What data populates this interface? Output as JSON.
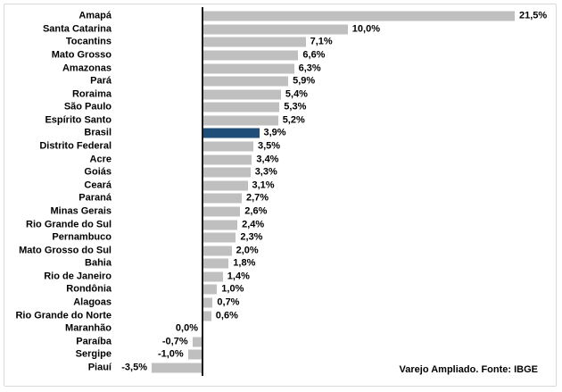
{
  "chart_data": {
    "type": "bar",
    "orientation": "horizontal",
    "title": "",
    "xlabel": "",
    "ylabel": "",
    "grid": false,
    "legend": false,
    "xlim": [
      -3.5,
      24
    ],
    "categories": [
      "Amapá",
      "Santa Catarina",
      "Tocantins",
      "Mato Grosso",
      "Amazonas",
      "Pará",
      "Roraima",
      "São Paulo",
      "Espírito Santo",
      "Brasil",
      "Distrito Federal",
      "Acre",
      "Goiás",
      "Ceará",
      "Paraná",
      "Minas Gerais",
      "Rio Grande do Sul",
      "Pernambuco",
      "Mato Grosso do Sul",
      "Bahia",
      "Rio de Janeiro",
      "Rondônia",
      "Alagoas",
      "Rio Grande do Norte",
      "Maranhão",
      "Paraíba",
      "Sergipe",
      "Piauí"
    ],
    "values": [
      21.5,
      10.0,
      7.1,
      6.6,
      6.3,
      5.9,
      5.4,
      5.3,
      5.2,
      3.9,
      3.5,
      3.4,
      3.3,
      3.1,
      2.7,
      2.6,
      2.4,
      2.3,
      2.0,
      1.8,
      1.4,
      1.0,
      0.7,
      0.6,
      0.0,
      -0.7,
      -1.0,
      -3.5
    ],
    "value_labels": [
      "21,5%",
      "10,0%",
      "7,1%",
      "6,6%",
      "6,3%",
      "5,9%",
      "5,4%",
      "5,3%",
      "5,2%",
      "3,9%",
      "3,5%",
      "3,4%",
      "3,3%",
      "3,1%",
      "2,7%",
      "2,6%",
      "2,4%",
      "2,3%",
      "2,0%",
      "1,8%",
      "1,4%",
      "1,0%",
      "0,7%",
      "0,6%",
      "0,0%",
      "-0,7%",
      "-1,0%",
      "-3,5%"
    ],
    "highlight_category": "Brasil",
    "highlight_index": 9,
    "colors": {
      "bar": "#bfbfbf",
      "highlight": "#1f4e79",
      "axis": "#1a1a1a",
      "text": "#000000",
      "frame_border": "#d9d9d9"
    },
    "annotation": "Varejo Ampliado. Fonte: IBGE"
  }
}
